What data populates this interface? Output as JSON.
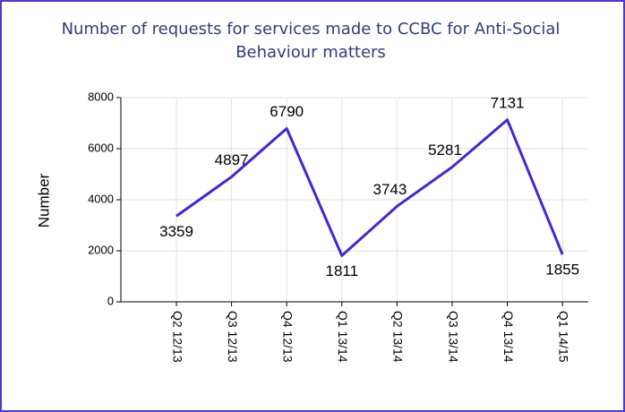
{
  "chart_data": {
    "type": "line",
    "title": "Number of requests for services made to CCBC for Anti-Social Behaviour matters",
    "y_label": "Number",
    "categories": [
      "Q2 12/13",
      "Q3 12/13",
      "Q4 12/13",
      "Q1 13/14",
      "Q2 13/14",
      "Q3 13/14",
      "Q4 13/14",
      "Q1 14/15"
    ],
    "series": [
      {
        "name": "Number",
        "color": "#3b2ad6",
        "values": [
          3359,
          4897,
          6790,
          1811,
          3743,
          5281,
          7131,
          1855
        ]
      }
    ],
    "ylim": [
      0,
      8000
    ],
    "yticks": [
      0,
      2000,
      4000,
      6000,
      8000
    ],
    "grid": true
  }
}
